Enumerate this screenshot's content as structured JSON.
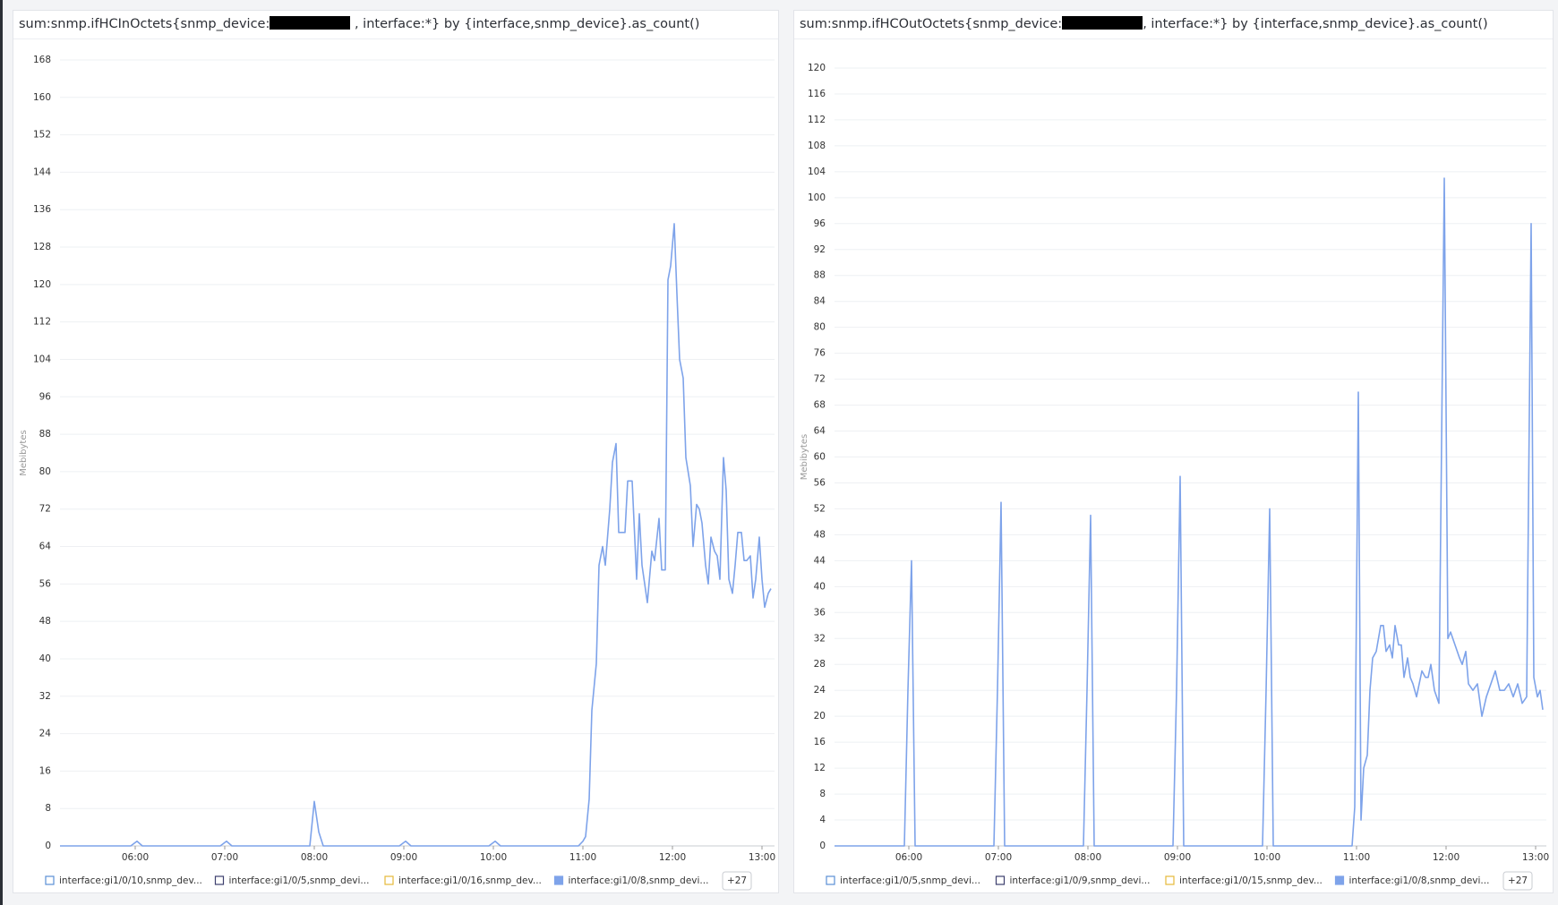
{
  "chart_data": [
    {
      "type": "line",
      "title": [
        "sum:snmp.ifHCInOctets{snmp_device:",
        " , interface:*} by {interface,snmp_device}.as_count()"
      ],
      "y_label": "Mebibytes",
      "x": [
        5.16,
        5.95,
        6.02,
        6.08,
        6.95,
        7.02,
        7.08,
        7.95,
        8.0,
        8.05,
        8.1,
        8.95,
        9.02,
        9.08,
        9.95,
        10.02,
        10.08,
        10.95,
        11.0,
        11.03,
        11.07,
        11.1,
        11.15,
        11.18,
        11.22,
        11.25,
        11.3,
        11.33,
        11.37,
        11.4,
        11.47,
        11.5,
        11.55,
        11.6,
        11.63,
        11.66,
        11.72,
        11.77,
        11.8,
        11.85,
        11.88,
        11.92,
        11.95,
        11.98,
        12.02,
        12.05,
        12.08,
        12.12,
        12.15,
        12.2,
        12.23,
        12.27,
        12.3,
        12.33,
        12.37,
        12.4,
        12.43,
        12.47,
        12.5,
        12.53,
        12.57,
        12.6,
        12.63,
        12.67,
        12.7,
        12.73,
        12.77,
        12.8,
        12.83,
        12.87,
        12.9,
        12.93,
        12.97,
        13.0,
        13.03,
        13.07,
        13.1
      ],
      "series": [
        {
          "color": "#7ea3ea",
          "values": [
            0,
            0,
            1,
            0,
            0,
            1,
            0,
            0,
            9.5,
            3,
            0,
            0,
            1,
            0,
            0,
            1,
            0,
            0,
            1,
            2,
            10,
            29,
            39,
            60,
            64,
            60,
            72,
            82,
            86,
            67,
            67,
            78,
            78,
            57,
            71,
            60,
            52,
            63,
            61,
            70,
            59,
            59,
            121,
            124,
            133,
            118,
            104,
            100,
            83,
            77,
            64,
            73,
            72,
            69,
            60,
            56,
            66,
            63,
            62,
            57,
            83,
            76,
            57,
            54,
            60,
            67,
            67,
            61,
            61,
            62,
            53,
            57,
            66,
            57,
            51,
            54,
            55
          ]
        }
      ],
      "xlim": [
        5.16,
        13.14
      ],
      "xticks": [
        {
          "value": 6,
          "label": "06:00"
        },
        {
          "value": 7,
          "label": "07:00"
        },
        {
          "value": 8,
          "label": "08:00"
        },
        {
          "value": 9,
          "label": "09:00"
        },
        {
          "value": 10,
          "label": "10:00"
        },
        {
          "value": 11,
          "label": "11:00"
        },
        {
          "value": 12,
          "label": "12:00"
        },
        {
          "value": 13,
          "label": "13:00"
        }
      ],
      "ylim": [
        0,
        168
      ],
      "yticks": [
        0,
        8,
        16,
        24,
        32,
        40,
        48,
        56,
        64,
        72,
        80,
        88,
        96,
        104,
        112,
        120,
        128,
        136,
        144,
        152,
        160,
        168
      ],
      "grid": true,
      "legend": [
        {
          "name": "interface:gi1/0/10,snmp_dev...",
          "color": "#5b8fd6",
          "filled": false
        },
        {
          "name": "interface:gi1/0/5,snmp_devi...",
          "color": "#3d3f6e",
          "filled": false
        },
        {
          "name": "interface:gi1/0/16,snmp_dev...",
          "color": "#e5b93a",
          "filled": false
        },
        {
          "name": "interface:gi1/0/8,snmp_devi...",
          "color": "#7ea3ea",
          "filled": true
        }
      ],
      "legend_more": "+27"
    },
    {
      "type": "line",
      "title": [
        "sum:snmp.ifHCOutOctets{snmp_device:",
        ", interface:*} by {interface,snmp_device}.as_count()"
      ],
      "y_label": "Mebibytes",
      "x": [
        5.17,
        5.95,
        5.99,
        6.03,
        6.07,
        6.95,
        6.99,
        7.03,
        7.07,
        7.95,
        7.99,
        8.03,
        8.07,
        8.95,
        8.99,
        9.03,
        9.07,
        9.95,
        9.99,
        10.03,
        10.07,
        10.95,
        10.98,
        11.02,
        11.05,
        11.08,
        11.12,
        11.15,
        11.18,
        11.22,
        11.27,
        11.3,
        11.33,
        11.37,
        11.4,
        11.43,
        11.47,
        11.5,
        11.53,
        11.57,
        11.6,
        11.63,
        11.67,
        11.7,
        11.73,
        11.77,
        11.8,
        11.83,
        11.87,
        11.92,
        11.98,
        12.02,
        12.05,
        12.1,
        12.15,
        12.18,
        12.22,
        12.25,
        12.3,
        12.35,
        12.4,
        12.45,
        12.5,
        12.55,
        12.6,
        12.65,
        12.7,
        12.75,
        12.8,
        12.85,
        12.9,
        12.95,
        12.98,
        13.02,
        13.05,
        13.08
      ],
      "series": [
        {
          "color": "#7ea3ea",
          "values": [
            0,
            0,
            24,
            44,
            0,
            0,
            24,
            53,
            0,
            0,
            24,
            51,
            0,
            0,
            24,
            57,
            0,
            0,
            24,
            52,
            0,
            0,
            6,
            70,
            4,
            12,
            14,
            24,
            29,
            30,
            34,
            34,
            30,
            31,
            29,
            34,
            31,
            31,
            26,
            29,
            26,
            25,
            23,
            25,
            27,
            26,
            26,
            28,
            24,
            22,
            103,
            32,
            33,
            31,
            29,
            28,
            30,
            25,
            24,
            25,
            20,
            23,
            25,
            27,
            24,
            24,
            25,
            23,
            25,
            22,
            23,
            96,
            26,
            23,
            24,
            21
          ]
        }
      ],
      "xlim": [
        5.17,
        13.12
      ],
      "xticks": [
        {
          "value": 6,
          "label": "06:00"
        },
        {
          "value": 7,
          "label": "07:00"
        },
        {
          "value": 8,
          "label": "08:00"
        },
        {
          "value": 9,
          "label": "09:00"
        },
        {
          "value": 10,
          "label": "10:00"
        },
        {
          "value": 11,
          "label": "11:00"
        },
        {
          "value": 12,
          "label": "12:00"
        },
        {
          "value": 13,
          "label": "13:00"
        }
      ],
      "ylim": [
        0,
        120
      ],
      "yticks": [
        0,
        4,
        8,
        12,
        16,
        20,
        24,
        28,
        32,
        36,
        40,
        44,
        48,
        52,
        56,
        60,
        64,
        68,
        72,
        76,
        80,
        84,
        88,
        92,
        96,
        100,
        104,
        108,
        112,
        116,
        120
      ],
      "grid": true,
      "legend": [
        {
          "name": "interface:gi1/0/5,snmp_devi...",
          "color": "#5b8fd6",
          "filled": false
        },
        {
          "name": "interface:gi1/0/9,snmp_devi...",
          "color": "#3d3f6e",
          "filled": false
        },
        {
          "name": "interface:gi1/0/15,snmp_dev...",
          "color": "#e5b93a",
          "filled": false
        },
        {
          "name": "interface:gi1/0/8,snmp_devi...",
          "color": "#7ea3ea",
          "filled": true
        }
      ],
      "legend_more": "+27"
    }
  ]
}
